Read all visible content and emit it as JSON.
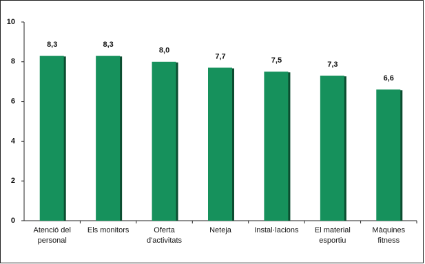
{
  "chart_data": {
    "type": "bar",
    "categories": [
      "Atenció del personal",
      "Els monitors",
      "Oferta d'activitats",
      "Neteja",
      "Instal·lacions",
      "El material esportiu",
      "Màquines fitness"
    ],
    "values": [
      8.3,
      8.3,
      8.0,
      7.7,
      7.5,
      7.3,
      6.6
    ],
    "value_labels": [
      "8,3",
      "8,3",
      "8,0",
      "7,7",
      "7,5",
      "7,3",
      "6,6"
    ],
    "color": "#16915c",
    "ylim": [
      0,
      10
    ],
    "yticks": [
      0,
      2,
      4,
      6,
      8,
      10
    ],
    "grid": false
  }
}
